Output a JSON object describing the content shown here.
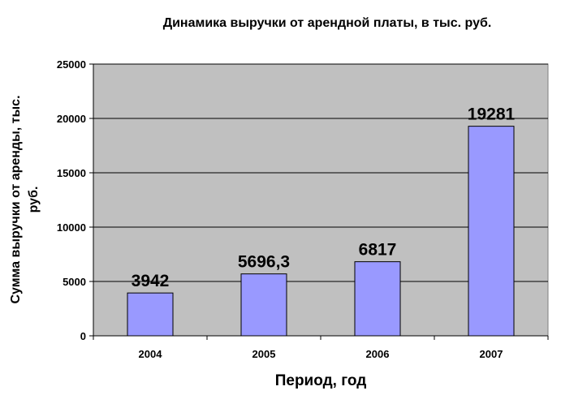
{
  "chart_data": {
    "type": "bar",
    "title": "Динамика выручки от арендной платы, в тыс. руб.",
    "xlabel": "Период, год",
    "ylabel": "Сумма выручки от аренды, тыс. руб.",
    "categories": [
      "2004",
      "2005",
      "2006",
      "2007"
    ],
    "values": [
      3942,
      5696.3,
      6817,
      19281
    ],
    "value_labels": [
      "3942",
      "5696,3",
      "6817",
      "19281"
    ],
    "ylim": [
      0,
      25000
    ],
    "yticks": [
      "0",
      "5000",
      "10000",
      "15000",
      "20000",
      "25000"
    ],
    "grid": true,
    "legend": "none",
    "colors": {
      "bar": "#9999ff",
      "plot_background": "#c0c0c0",
      "grid": "#000000"
    }
  }
}
